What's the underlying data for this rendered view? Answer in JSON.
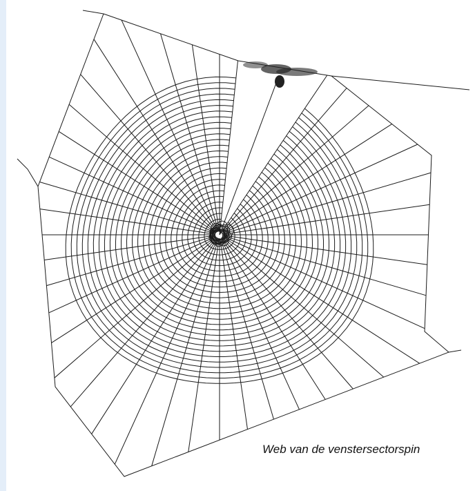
{
  "caption": "Web van de venstersectorspin"
}
